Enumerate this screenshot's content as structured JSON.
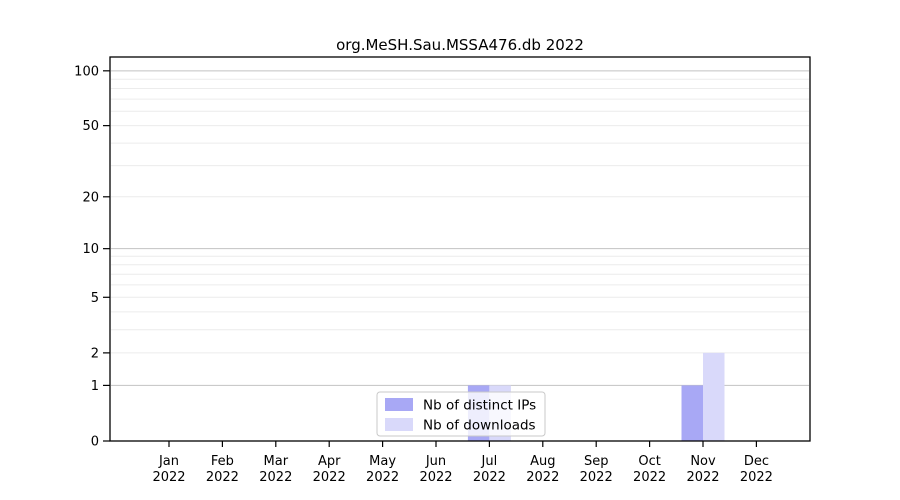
{
  "figure": {
    "title": "org.MeSH.Sau.MSSA476.db 2022"
  },
  "chart_data": {
    "type": "bar",
    "title": "org.MeSH.Sau.MSSA476.db 2022",
    "categories": [
      "Jan 2022",
      "Feb 2022",
      "Mar 2022",
      "Apr 2022",
      "May 2022",
      "Jun 2022",
      "Jul 2022",
      "Aug 2022",
      "Sep 2022",
      "Oct 2022",
      "Nov 2022",
      "Dec 2022"
    ],
    "series": [
      {
        "name": "Nb of distinct IPs",
        "color": "#a8a8f5",
        "values": [
          0,
          0,
          0,
          0,
          0,
          0,
          1,
          0,
          0,
          0,
          1,
          0
        ]
      },
      {
        "name": "Nb of downloads",
        "color": "#d9d9fa",
        "values": [
          0,
          0,
          0,
          0,
          0,
          0,
          1,
          0,
          0,
          0,
          2,
          0
        ]
      }
    ],
    "xlabel": "",
    "ylabel": "",
    "yscale": "log1p",
    "ylim": [
      0,
      119
    ],
    "yticks": [
      0,
      1,
      2,
      5,
      10,
      20,
      50,
      100
    ],
    "grid": "horizontal",
    "grid_major": [
      1,
      10,
      100
    ],
    "grid_minor": [
      2,
      3,
      4,
      5,
      6,
      7,
      8,
      9,
      20,
      30,
      40,
      50,
      60,
      70,
      80,
      90
    ],
    "legend_position": "inside-bottom-center",
    "colors": {
      "bar_distinct_ips": "#a8a8f5",
      "bar_downloads": "#d9d9fa",
      "grid_major": "#c2c2c2",
      "grid_minor": "#ececec",
      "axis": "#000000",
      "legend_border": "#c9c9c9",
      "legend_bg": "rgba(255,255,255,0.8)",
      "text": "#000000"
    }
  }
}
